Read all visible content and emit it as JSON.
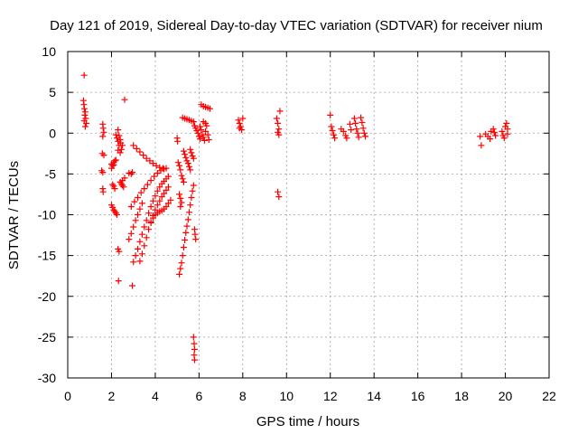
{
  "chart_data": {
    "type": "scatter",
    "title": "Day 121 of 2019, Sidereal Day-to-day VTEC variation (SDTVAR) for receiver nium",
    "xlabel": "GPS time / hours",
    "ylabel": "SDTVAR / TECUs",
    "xlim": [
      0,
      22
    ],
    "ylim": [
      -30,
      10
    ],
    "xticks": [
      0,
      2,
      4,
      6,
      8,
      10,
      12,
      14,
      16,
      18,
      20,
      22
    ],
    "yticks": [
      10,
      5,
      0,
      -5,
      -10,
      -15,
      -20,
      -25,
      -30
    ],
    "grid": true,
    "marker": "+",
    "color": "#ff0000",
    "series": [
      {
        "name": "sdtvar",
        "points": [
          [
            0.75,
            7.1
          ],
          [
            0.72,
            4.0
          ],
          [
            0.74,
            3.5
          ],
          [
            0.76,
            3.0
          ],
          [
            0.8,
            2.6
          ],
          [
            0.78,
            2.2
          ],
          [
            0.82,
            1.8
          ],
          [
            0.75,
            1.5
          ],
          [
            0.85,
            1.2
          ],
          [
            0.8,
            0.8
          ],
          [
            1.6,
            1.1
          ],
          [
            1.62,
            0.6
          ],
          [
            1.65,
            0.1
          ],
          [
            1.6,
            -0.4
          ],
          [
            1.58,
            -2.5
          ],
          [
            1.65,
            -2.7
          ],
          [
            1.55,
            -4.6
          ],
          [
            1.6,
            -4.8
          ],
          [
            1.6,
            -6.8
          ],
          [
            1.62,
            -7.2
          ],
          [
            2.0,
            -3.8
          ],
          [
            2.05,
            -4.0
          ],
          [
            2.1,
            -3.6
          ],
          [
            2.15,
            -3.4
          ],
          [
            2.2,
            -3.3
          ],
          [
            2.1,
            -3.9
          ],
          [
            2.0,
            -4.3
          ],
          [
            2.3,
            0.4
          ],
          [
            2.35,
            -0.3
          ],
          [
            2.4,
            -0.8
          ],
          [
            2.42,
            -1.2
          ],
          [
            2.5,
            -1.5
          ],
          [
            2.45,
            -2.0
          ],
          [
            2.4,
            -2.4
          ],
          [
            2.2,
            -0.2
          ],
          [
            2.25,
            -0.6
          ],
          [
            2.3,
            -1.0
          ],
          [
            2.35,
            -1.5
          ],
          [
            2.3,
            -2.1
          ],
          [
            2.05,
            -6.3
          ],
          [
            2.1,
            -6.5
          ],
          [
            2.15,
            -6.8
          ],
          [
            2.0,
            -8.8
          ],
          [
            2.05,
            -9.1
          ],
          [
            2.1,
            -9.4
          ],
          [
            2.15,
            -9.6
          ],
          [
            2.2,
            -9.8
          ],
          [
            2.25,
            -10.0
          ],
          [
            2.6,
            4.1
          ],
          [
            2.3,
            -14.2
          ],
          [
            2.35,
            -14.5
          ],
          [
            2.32,
            -18.1
          ],
          [
            2.4,
            -6.0
          ],
          [
            2.45,
            -6.2
          ],
          [
            2.5,
            -6.4
          ],
          [
            2.55,
            -6.6
          ],
          [
            2.5,
            -5.8
          ],
          [
            2.6,
            -5.5
          ],
          [
            2.8,
            -4.9
          ],
          [
            2.9,
            -5.0
          ],
          [
            2.95,
            -4.8
          ],
          [
            2.95,
            -18.7
          ],
          [
            3.0,
            -1.5
          ],
          [
            3.15,
            -1.9
          ],
          [
            3.3,
            -2.3
          ],
          [
            3.45,
            -2.7
          ],
          [
            3.6,
            -3.1
          ],
          [
            3.75,
            -3.4
          ],
          [
            3.9,
            -3.7
          ],
          [
            4.05,
            -4.0
          ],
          [
            4.2,
            -4.2
          ],
          [
            4.35,
            -4.3
          ],
          [
            4.5,
            -4.3
          ],
          [
            2.9,
            -9.0
          ],
          [
            3.05,
            -8.4
          ],
          [
            3.2,
            -7.9
          ],
          [
            3.35,
            -7.3
          ],
          [
            3.5,
            -6.8
          ],
          [
            3.65,
            -6.3
          ],
          [
            3.8,
            -5.8
          ],
          [
            3.95,
            -5.3
          ],
          [
            4.1,
            -4.9
          ],
          [
            4.25,
            -4.6
          ],
          [
            4.4,
            -4.4
          ],
          [
            2.8,
            -13.0
          ],
          [
            2.9,
            -12.3
          ],
          [
            3.0,
            -11.5
          ],
          [
            3.1,
            -10.7
          ],
          [
            3.2,
            -10.0
          ],
          [
            3.3,
            -9.3
          ],
          [
            3.4,
            -8.6
          ],
          [
            3.0,
            -15.8
          ],
          [
            3.1,
            -15.0
          ],
          [
            3.2,
            -14.2
          ],
          [
            3.3,
            -13.3
          ],
          [
            3.4,
            -12.4
          ],
          [
            3.5,
            -11.5
          ],
          [
            3.6,
            -10.7
          ],
          [
            3.7,
            -9.8
          ],
          [
            3.8,
            -9.0
          ],
          [
            3.9,
            -8.3
          ],
          [
            4.0,
            -7.7
          ],
          [
            4.1,
            -7.1
          ],
          [
            4.2,
            -6.6
          ],
          [
            4.3,
            -6.2
          ],
          [
            4.4,
            -5.9
          ],
          [
            4.5,
            -5.6
          ],
          [
            4.6,
            -5.3
          ],
          [
            3.3,
            -15.7
          ],
          [
            3.4,
            -14.8
          ],
          [
            3.5,
            -13.8
          ],
          [
            3.6,
            -12.8
          ],
          [
            3.7,
            -11.8
          ],
          [
            3.8,
            -10.9
          ],
          [
            3.9,
            -10.1
          ],
          [
            4.0,
            -9.4
          ],
          [
            4.1,
            -8.8
          ],
          [
            4.2,
            -8.3
          ],
          [
            4.3,
            -7.8
          ],
          [
            4.4,
            -7.4
          ],
          [
            4.5,
            -7.0
          ],
          [
            4.6,
            -6.6
          ],
          [
            3.8,
            -11.0
          ],
          [
            3.9,
            -10.4
          ],
          [
            4.0,
            -10.0
          ],
          [
            4.1,
            -9.8
          ],
          [
            4.2,
            -9.6
          ],
          [
            4.3,
            -9.5
          ],
          [
            4.4,
            -9.3
          ],
          [
            4.5,
            -9.0
          ],
          [
            4.6,
            -8.6
          ],
          [
            4.7,
            -8.2
          ],
          [
            5.0,
            -0.6
          ],
          [
            5.02,
            -1.0
          ],
          [
            5.05,
            -3.6
          ],
          [
            5.1,
            -4.0
          ],
          [
            5.15,
            -4.5
          ],
          [
            5.2,
            -5.2
          ],
          [
            5.25,
            -5.6
          ],
          [
            5.3,
            -6.0
          ],
          [
            5.3,
            -2.2
          ],
          [
            5.35,
            -2.6
          ],
          [
            5.4,
            -3.0
          ],
          [
            5.45,
            -3.4
          ],
          [
            5.5,
            -3.7
          ],
          [
            5.55,
            -4.1
          ],
          [
            5.6,
            -4.5
          ],
          [
            5.6,
            -2.0
          ],
          [
            5.65,
            -2.4
          ],
          [
            5.7,
            -2.8
          ],
          [
            5.75,
            -3.1
          ],
          [
            5.1,
            -7.5
          ],
          [
            5.15,
            -8.0
          ],
          [
            5.2,
            -8.5
          ],
          [
            5.15,
            -9.0
          ],
          [
            5.25,
            1.9
          ],
          [
            5.35,
            1.8
          ],
          [
            5.45,
            1.7
          ],
          [
            5.55,
            1.6
          ],
          [
            5.65,
            1.5
          ],
          [
            5.75,
            1.4
          ],
          [
            5.8,
            0.9
          ],
          [
            5.85,
            0.6
          ],
          [
            5.9,
            0.3
          ],
          [
            5.95,
            0.0
          ],
          [
            6.0,
            -0.4
          ],
          [
            6.05,
            -0.7
          ],
          [
            6.05,
            0.8
          ],
          [
            6.1,
            0.4
          ],
          [
            6.15,
            -0.2
          ],
          [
            6.2,
            -0.5
          ],
          [
            6.25,
            -0.9
          ],
          [
            6.2,
            1.4
          ],
          [
            6.3,
            1.2
          ],
          [
            6.35,
            0.9
          ],
          [
            6.3,
            0.2
          ],
          [
            6.4,
            -0.2
          ],
          [
            6.45,
            -0.8
          ],
          [
            6.1,
            3.5
          ],
          [
            6.2,
            3.3
          ],
          [
            6.3,
            3.2
          ],
          [
            6.4,
            3.1
          ],
          [
            6.5,
            3.0
          ],
          [
            5.1,
            -17.3
          ],
          [
            5.15,
            -16.6
          ],
          [
            5.2,
            -15.9
          ],
          [
            5.25,
            -15.0
          ],
          [
            5.3,
            -14.0
          ],
          [
            5.35,
            -13.1
          ],
          [
            5.4,
            -12.2
          ],
          [
            5.45,
            -11.4
          ],
          [
            5.5,
            -10.6
          ],
          [
            5.55,
            -9.7
          ],
          [
            5.6,
            -8.8
          ],
          [
            5.65,
            -7.9
          ],
          [
            5.7,
            -7.1
          ],
          [
            5.75,
            -6.4
          ],
          [
            5.8,
            -11.8
          ],
          [
            5.82,
            -12.4
          ],
          [
            5.85,
            -13.0
          ],
          [
            5.75,
            -25.0
          ],
          [
            5.78,
            -25.8
          ],
          [
            5.8,
            -26.5
          ],
          [
            5.78,
            -27.2
          ],
          [
            5.8,
            -27.8
          ],
          [
            7.8,
            1.6
          ],
          [
            7.85,
            1.2
          ],
          [
            7.9,
            0.8
          ],
          [
            7.95,
            0.4
          ],
          [
            8.0,
            1.8
          ],
          [
            7.85,
            0.6
          ],
          [
            9.55,
            1.8
          ],
          [
            9.6,
            1.2
          ],
          [
            9.65,
            0.5
          ],
          [
            9.6,
            0.1
          ],
          [
            9.7,
            2.7
          ],
          [
            9.65,
            -0.2
          ],
          [
            9.6,
            -7.2
          ],
          [
            9.65,
            -7.8
          ],
          [
            12.0,
            2.2
          ],
          [
            12.05,
            0.8
          ],
          [
            12.1,
            0.3
          ],
          [
            12.15,
            -0.2
          ],
          [
            12.2,
            -0.6
          ],
          [
            12.5,
            0.5
          ],
          [
            12.6,
            0.2
          ],
          [
            12.7,
            -0.3
          ],
          [
            12.75,
            -0.6
          ],
          [
            12.9,
            1.1
          ],
          [
            12.95,
            0.4
          ],
          [
            13.1,
            1.8
          ],
          [
            13.15,
            1.2
          ],
          [
            13.2,
            0.5
          ],
          [
            13.25,
            0.0
          ],
          [
            13.3,
            -0.5
          ],
          [
            13.4,
            1.9
          ],
          [
            13.45,
            1.3
          ],
          [
            13.5,
            0.6
          ],
          [
            13.55,
            0.0
          ],
          [
            13.6,
            -0.4
          ],
          [
            18.85,
            -0.4
          ],
          [
            18.9,
            -1.5
          ],
          [
            19.1,
            -0.1
          ],
          [
            19.2,
            -0.4
          ],
          [
            19.3,
            -0.7
          ],
          [
            19.35,
            0.2
          ],
          [
            19.45,
            0.5
          ],
          [
            19.5,
            0.1
          ],
          [
            19.55,
            -0.3
          ],
          [
            19.85,
            0.2
          ],
          [
            19.9,
            -0.3
          ],
          [
            19.95,
            -0.6
          ],
          [
            20.0,
            0.8
          ],
          [
            20.05,
            1.2
          ],
          [
            20.1,
            0.5
          ],
          [
            20.1,
            -0.1
          ]
        ]
      }
    ]
  }
}
